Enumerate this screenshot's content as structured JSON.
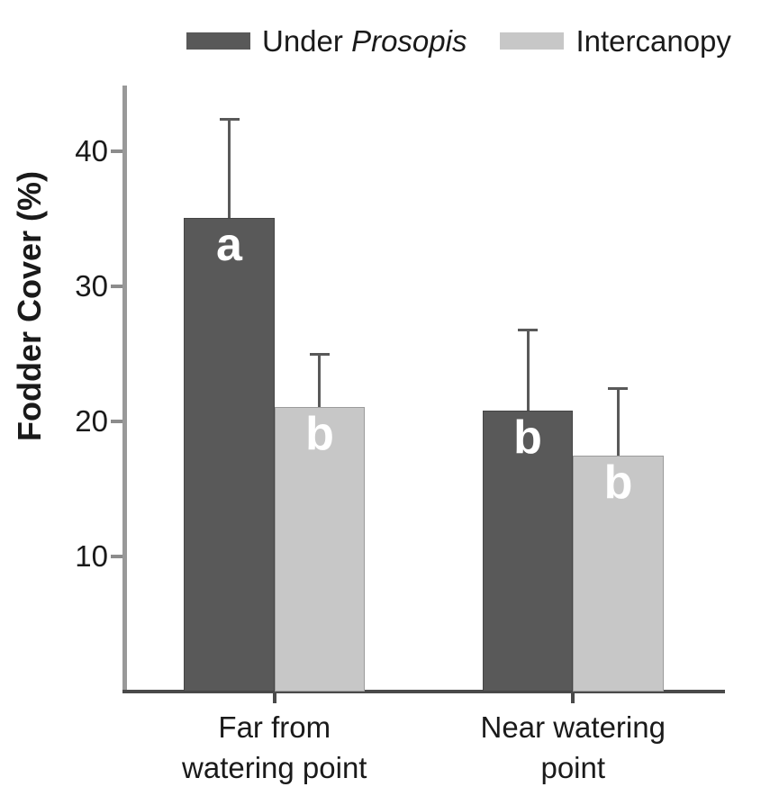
{
  "legend": {
    "position": "top",
    "items": [
      {
        "prefix": "Under ",
        "italic": "Prosopis",
        "color": "#595959"
      },
      {
        "prefix": "Intercanopy",
        "italic": "",
        "color": "#c7c7c7"
      }
    ]
  },
  "chart_data": {
    "type": "bar",
    "title": "",
    "xlabel": "",
    "ylabel": "Fodder Cover (%)",
    "ylim": [
      0,
      44.9
    ],
    "yticks": [
      40,
      30,
      20,
      10
    ],
    "grid": false,
    "legend_position": "top",
    "categories": [
      "Far from watering point",
      "Near watering point"
    ],
    "category_lines": [
      [
        "Far from",
        "watering point"
      ],
      [
        "Near watering",
        "point"
      ]
    ],
    "series": [
      {
        "name": "Under Prosopis",
        "color": "#595959",
        "values": [
          35.1,
          20.8
        ],
        "errors_up": [
          7.3,
          6.0
        ],
        "letters": [
          "a",
          "b"
        ]
      },
      {
        "name": "Intercanopy",
        "color": "#c7c7c7",
        "values": [
          21.1,
          17.5
        ],
        "errors_up": [
          3.9,
          5.0
        ],
        "letters": [
          "b",
          "b"
        ]
      }
    ],
    "significance_letter_color": "#ffffff",
    "error_bar_color": "#595959",
    "y_axis_color": "#999999",
    "x_axis_color": "#4a4a4a",
    "text_color": "#1a1a1a"
  }
}
